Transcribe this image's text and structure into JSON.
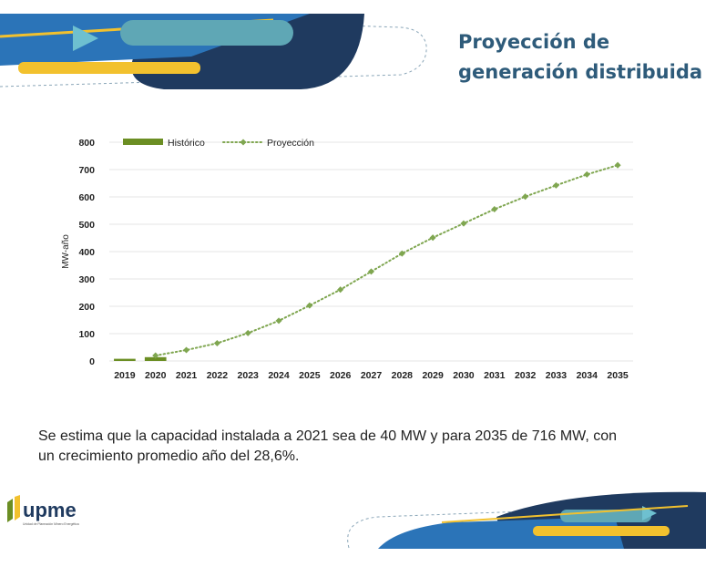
{
  "slide": {
    "title_line1": "Proyección de",
    "title_line2": "generación distribuida",
    "caption_line1": "Se estima que la capacidad instalada a 2021 sea de 40 MW y para 2035 de 716 MW, con",
    "caption_line2": "un crecimiento promedio año del 28,6%."
  },
  "logo": {
    "text": "upme",
    "tagline": "Unidad de Planeación Minero Energética"
  },
  "colors": {
    "title": "#2E5B7A",
    "historico": "#6B8E23",
    "proyeccion": "#7FA650",
    "navy": "#1F3A5F",
    "blue": "#2B74B8",
    "teal": "#5FA7B5",
    "yellow": "#F2C12E"
  },
  "chart_data": {
    "type": "line",
    "title": "",
    "xlabel": "",
    "ylabel": "MW-año",
    "ylim": [
      0,
      800
    ],
    "yticks": [
      0,
      100,
      200,
      300,
      400,
      500,
      600,
      700,
      800
    ],
    "categories": [
      "2019",
      "2020",
      "2021",
      "2022",
      "2023",
      "2024",
      "2025",
      "2026",
      "2027",
      "2028",
      "2029",
      "2030",
      "2031",
      "2032",
      "2033",
      "2034",
      "2035"
    ],
    "legend_position": "top-left",
    "grid": true,
    "series": [
      {
        "name": "Histórico",
        "type": "bar",
        "values": [
          8,
          14,
          null,
          null,
          null,
          null,
          null,
          null,
          null,
          null,
          null,
          null,
          null,
          null,
          null,
          null,
          null
        ]
      },
      {
        "name": "Proyección",
        "type": "line",
        "values": [
          null,
          20,
          40,
          65,
          102,
          147,
          203,
          261,
          327,
          393,
          451,
          503,
          555,
          601,
          642,
          682,
          716
        ]
      }
    ]
  }
}
